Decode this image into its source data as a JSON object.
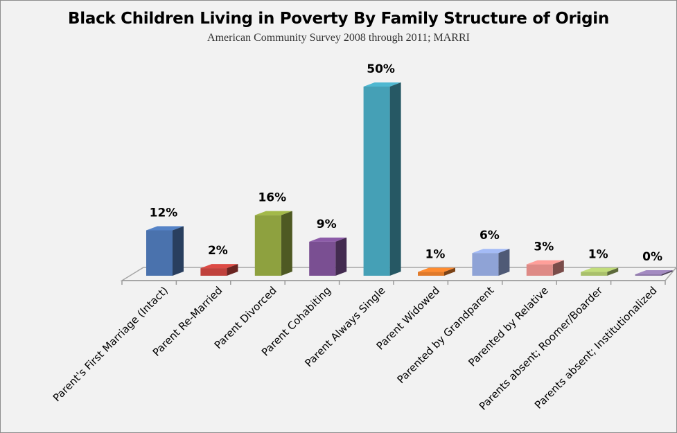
{
  "chart_data": {
    "type": "bar",
    "title": "Black Children Living in Poverty By Family Structure of Origin",
    "subtitle": "American Community Survey 2008 through 2011; MARRI",
    "categories": [
      "Parent's First Marriage (Intact)",
      "Parent Re-Married",
      "Parent Divorced",
      "Parent Cohabiting",
      "Parent Always Single",
      "Parent Widowed",
      "Parented by Grandparent",
      "Parented by Relative",
      "Parents absent; Roomer/Boarder",
      "Parents absent; Institutionalized"
    ],
    "values": [
      12,
      2,
      16,
      9,
      50,
      1,
      6,
      3,
      1,
      0
    ],
    "data_labels": [
      "12%",
      "2%",
      "16%",
      "9%",
      "50%",
      "1%",
      "6%",
      "3%",
      "1%",
      "0%"
    ],
    "colors": [
      "#4a72ad",
      "#c0413c",
      "#8ea13f",
      "#7a4f92",
      "#45a0b6",
      "#e07a2a",
      "#8fa3d6",
      "#de8a86",
      "#a9c06b",
      "#8e78a8"
    ],
    "ylim": [
      0,
      50
    ],
    "style": "3d-column",
    "grid": false,
    "legend": "none"
  }
}
